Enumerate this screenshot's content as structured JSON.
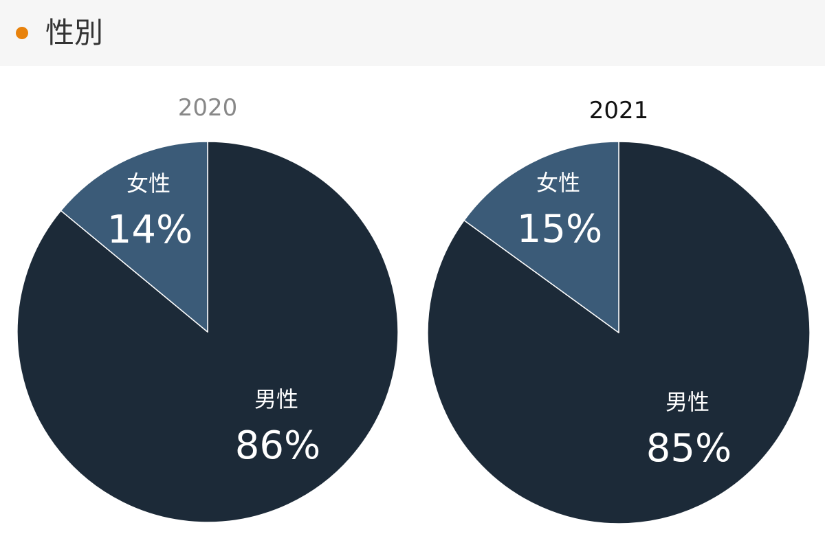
{
  "header": {
    "title": "性別",
    "dot_color": "#e8820c"
  },
  "chart_data": [
    {
      "type": "pie",
      "title": "2020",
      "title_color": "#888888",
      "start": "12 o'clock, clockwise",
      "slices": [
        {
          "label": "男性",
          "value": 86,
          "display": "86%",
          "color": "#1c2a38"
        },
        {
          "label": "女性",
          "value": 14,
          "display": "14%",
          "color": "#3b5b78"
        }
      ]
    },
    {
      "type": "pie",
      "title": "2021",
      "title_color": "#111111",
      "start": "12 o'clock, clockwise",
      "slices": [
        {
          "label": "男性",
          "value": 85,
          "display": "85%",
          "color": "#1c2a38"
        },
        {
          "label": "女性",
          "value": 15,
          "display": "15%",
          "color": "#3b5b78"
        }
      ]
    }
  ]
}
